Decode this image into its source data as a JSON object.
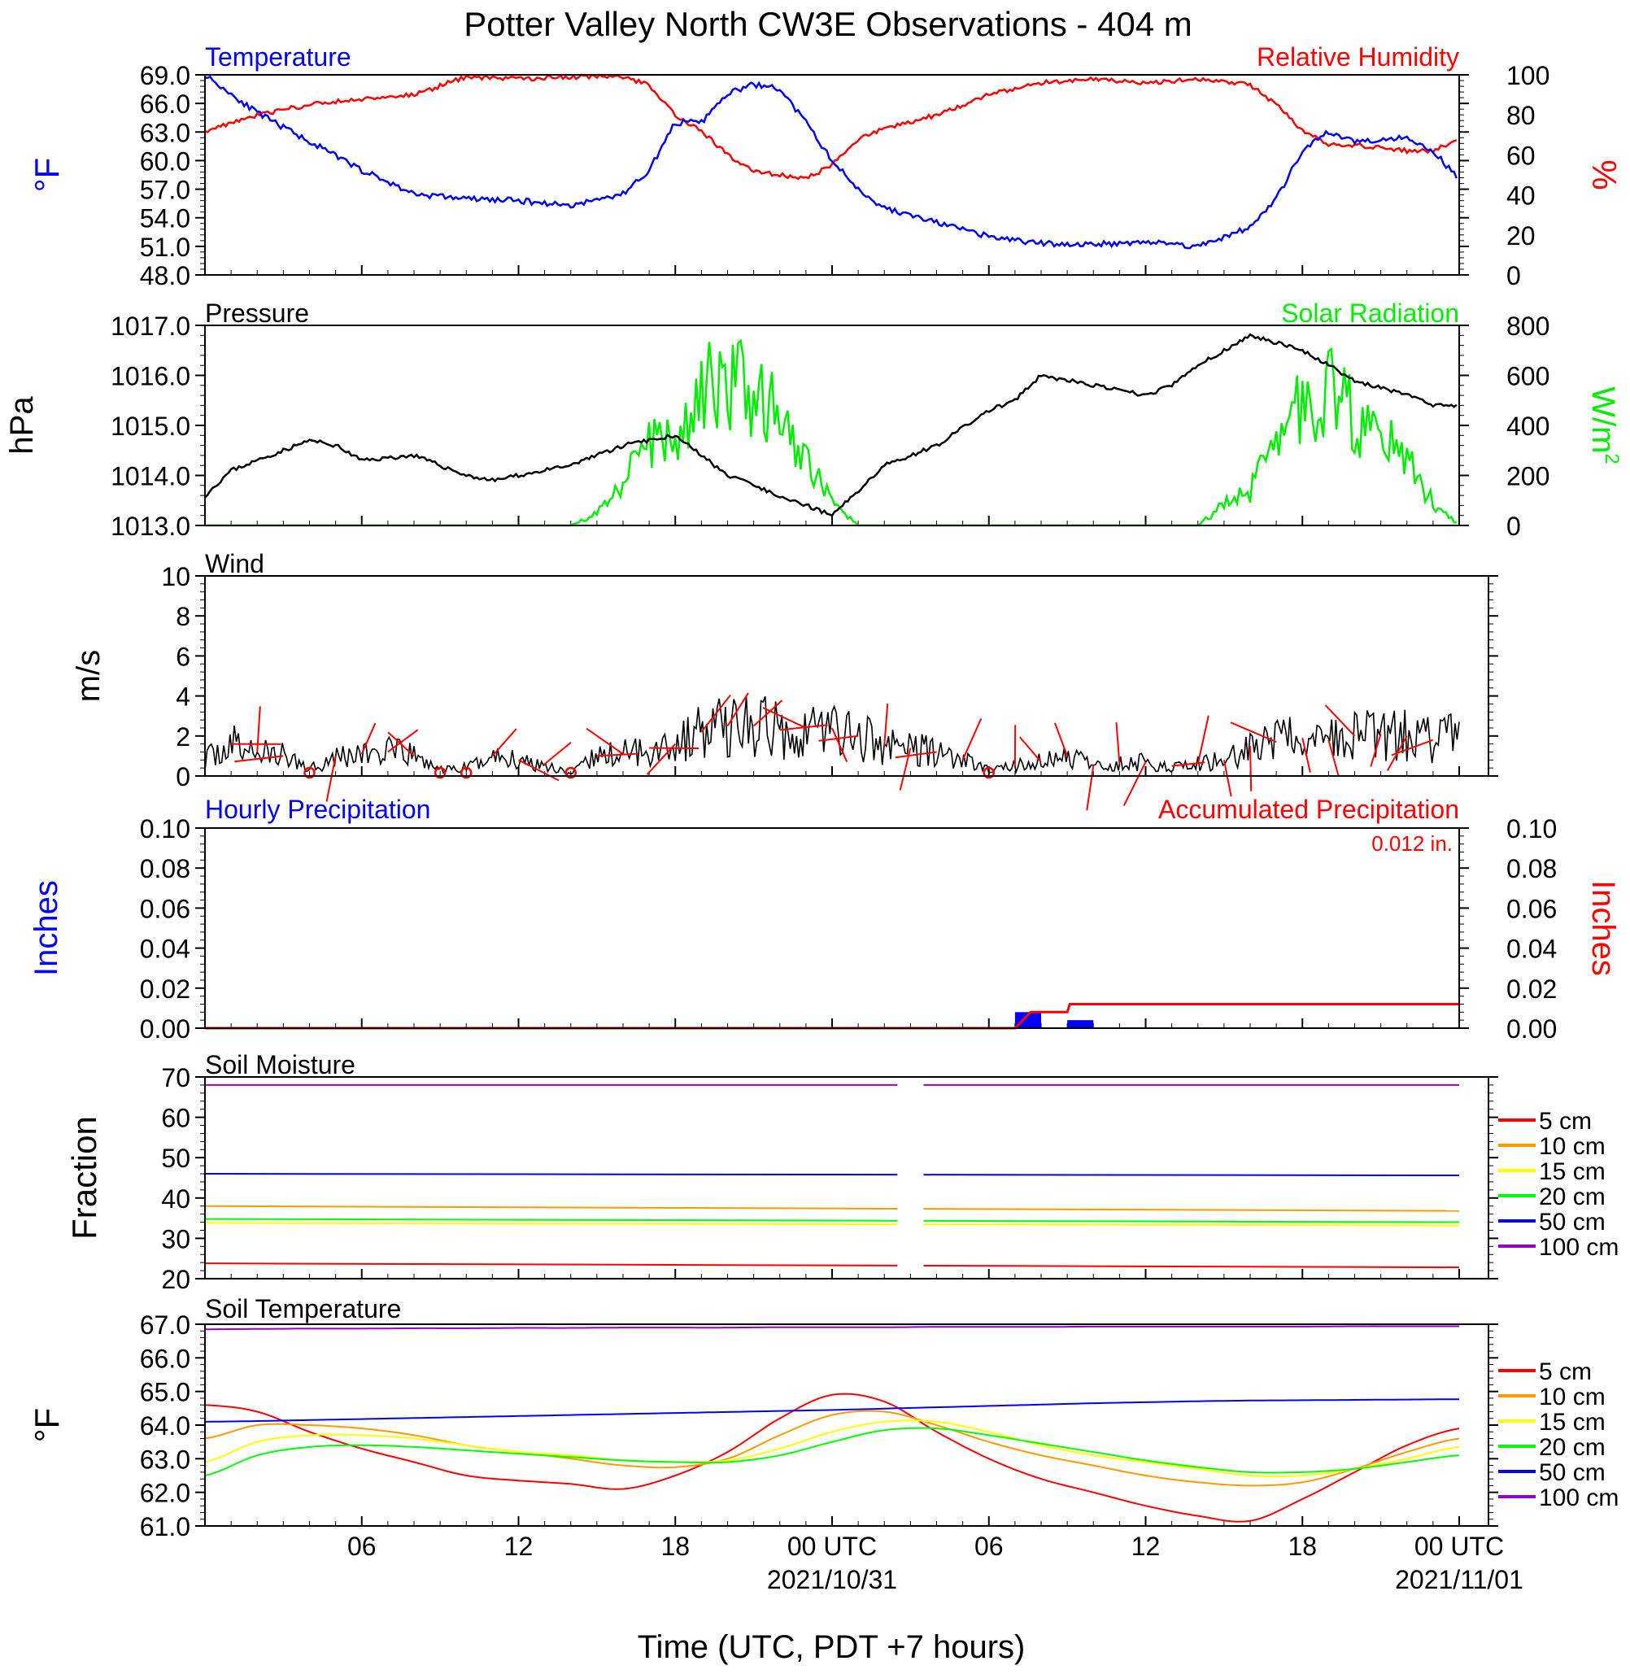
{
  "figure_title": "Potter Valley North CW3E Observations - 404 m",
  "x_axis": {
    "label": "Time (UTC, PDT +7 hours)",
    "ticks": [
      "06",
      "12",
      "18",
      "00 UTC",
      "06",
      "12",
      "18",
      "00 UTC"
    ],
    "dates": [
      "2021/10/31",
      "2021/11/01"
    ]
  },
  "colors": {
    "temperature": "#0000ff",
    "humidity": "#ff0000",
    "pressure": "#000000",
    "solar": "#00ee00",
    "wind": "#000000",
    "wind_barb": "#ff0000",
    "hourly_precip": "#0000ff",
    "accum_precip": "#ff0000"
  },
  "chart_data": [
    {
      "type": "line",
      "title_left": "Temperature",
      "title_right": "Relative Humidity",
      "ylabel_left": "°F",
      "ylabel_right": "%",
      "ylim_left": [
        48,
        69
      ],
      "ylim_right": [
        0,
        100
      ],
      "yticks_left": [
        "69.0",
        "66.0",
        "63.0",
        "60.0",
        "57.0",
        "54.0",
        "51.0",
        "48.0"
      ],
      "yticks_right": [
        "100",
        "80",
        "60",
        "40",
        "20",
        "0"
      ],
      "x_hours": [
        0,
        2,
        4,
        6,
        8,
        10,
        12,
        14,
        16,
        17,
        18,
        19,
        20,
        21,
        22,
        23,
        24,
        25,
        26,
        28,
        30,
        32,
        34,
        36,
        38,
        40,
        41,
        42,
        43,
        44,
        46,
        47,
        48
      ],
      "series": [
        {
          "name": "Temperature",
          "axis": "left",
          "values": [
            69,
            65,
            62,
            59,
            56.5,
            56,
            55.8,
            55.3,
            56.5,
            59,
            64,
            64,
            67,
            68,
            67.5,
            64,
            60,
            57,
            55,
            53.5,
            52,
            51.3,
            51.2,
            51.5,
            51,
            53,
            56,
            61,
            63,
            62,
            62.5,
            61,
            58
          ]
        },
        {
          "name": "Relative Humidity",
          "axis": "right",
          "values": [
            72,
            80,
            85,
            88,
            90,
            99,
            98,
            99,
            99,
            95,
            80,
            72,
            60,
            52,
            50,
            48,
            55,
            68,
            73,
            80,
            90,
            96,
            98,
            96,
            98,
            95,
            85,
            72,
            65,
            65,
            62,
            62,
            68
          ]
        }
      ]
    },
    {
      "type": "line",
      "title_left": "Pressure",
      "title_right": "Solar Radiation",
      "ylabel_left": "hPa",
      "ylabel_right": "W/m",
      "ylabel_right_sup": "2",
      "ylim_left": [
        1013,
        1017
      ],
      "ylim_right": [
        0,
        800
      ],
      "yticks_left": [
        "1017.0",
        "1016.0",
        "1015.0",
        "1014.0",
        "1013.0"
      ],
      "yticks_right": [
        "800",
        "600",
        "400",
        "200",
        "0"
      ],
      "series": [
        {
          "name": "Pressure",
          "axis": "left",
          "x_hours": [
            0,
            1,
            2,
            4,
            5,
            6,
            8,
            10,
            11,
            12,
            14,
            16,
            18,
            20,
            22,
            24,
            26,
            28,
            30,
            31,
            32,
            34,
            36,
            37,
            38,
            39,
            40,
            42,
            44,
            46,
            47,
            48
          ],
          "values": [
            1013.6,
            1014.1,
            1014.3,
            1014.7,
            1014.6,
            1014.3,
            1014.4,
            1014,
            1013.9,
            1014.0,
            1014.2,
            1014.6,
            1014.8,
            1014.0,
            1013.6,
            1013.2,
            1014.2,
            1014.6,
            1015.3,
            1015.5,
            1016.0,
            1015.8,
            1015.6,
            1015.8,
            1016.2,
            1016.5,
            1016.8,
            1016.5,
            1015.9,
            1015.6,
            1015.4,
            1015.4
          ]
        },
        {
          "name": "Solar Radiation",
          "axis": "right",
          "x_hours": [
            0,
            14,
            15,
            16,
            17,
            18,
            19,
            19.5,
            20,
            21,
            22,
            23,
            24,
            25,
            26,
            38,
            39,
            40,
            40.5,
            41,
            42,
            43,
            44,
            45,
            46,
            47,
            48
          ],
          "values": [
            0,
            0,
            50,
            200,
            350,
            420,
            600,
            700,
            650,
            620,
            500,
            300,
            100,
            0,
            0,
            0,
            100,
            150,
            280,
            450,
            520,
            600,
            500,
            400,
            300,
            100,
            0
          ]
        }
      ]
    },
    {
      "type": "line",
      "title_left": "Wind",
      "ylabel_left": "m/s",
      "ylim_left": [
        0,
        10
      ],
      "yticks_left": [
        "10",
        "8",
        "6",
        "4",
        "2",
        "0"
      ],
      "x_hours": [
        0,
        1,
        2,
        3,
        4,
        5,
        6,
        7,
        8,
        9,
        10,
        11,
        12,
        13,
        14,
        15,
        16,
        17,
        18,
        19,
        20,
        21,
        22,
        23,
        24,
        25,
        26,
        27,
        28,
        29,
        30,
        31,
        32,
        33,
        34,
        35,
        36,
        37,
        38,
        39,
        40,
        41,
        42,
        43,
        44,
        45,
        46,
        47,
        48
      ],
      "series": [
        {
          "name": "Wind speed",
          "values": [
            0.8,
            1.6,
            1.2,
            1.0,
            0.4,
            1.0,
            1.1,
            1.2,
            1.0,
            0.3,
            0.4,
            1.0,
            0.8,
            0.6,
            0.1,
            1.0,
            1.1,
            1.4,
            1.6,
            2.2,
            2.5,
            2.5,
            2.3,
            2.4,
            2.4,
            2.0,
            1.5,
            1.4,
            1.2,
            0.8,
            0.3,
            0.5,
            0.7,
            1.0,
            0.5,
            0.6,
            0.7,
            0.5,
            0.6,
            0.8,
            1.5,
            1.7,
            1.9,
            1.8,
            2.0,
            2.1,
            2.0,
            1.8,
            2.2
          ]
        }
      ]
    },
    {
      "type": "bar",
      "title_left": "Hourly Precipitation",
      "title_right": "Accumulated Precipitation",
      "annotation": "0.012 in.",
      "ylabel_left": "Inches",
      "ylabel_right": "Inches",
      "ylim_left": [
        0,
        0.1
      ],
      "ylim_right": [
        0,
        0.1
      ],
      "yticks_left": [
        "0.10",
        "0.08",
        "0.06",
        "0.04",
        "0.02",
        "0.00"
      ],
      "yticks_right": [
        "0.10",
        "0.08",
        "0.06",
        "0.04",
        "0.02",
        "0.00"
      ],
      "series": [
        {
          "name": "Hourly Precipitation",
          "x_hours": [
            31,
            33
          ],
          "values": [
            0.008,
            0.004
          ]
        },
        {
          "name": "Accumulated Precipitation",
          "x_hours": [
            0,
            31,
            31.6,
            33,
            33.1,
            48
          ],
          "values": [
            0,
            0,
            0.008,
            0.008,
            0.012,
            0.012
          ]
        }
      ]
    },
    {
      "type": "line",
      "title_left": "Soil Moisture",
      "ylabel_left": "Fraction",
      "ylim_left": [
        20,
        70
      ],
      "yticks_left": [
        "70",
        "60",
        "50",
        "40",
        "30",
        "20"
      ],
      "gap_hours": [
        26.5,
        27.5
      ],
      "series": [
        {
          "name": "5 cm",
          "color": "#ff0000",
          "values_start_end": [
            23.8,
            22.8
          ]
        },
        {
          "name": "10 cm",
          "color": "#ff9900",
          "values_start_end": [
            38.0,
            36.8
          ]
        },
        {
          "name": "15 cm",
          "color": "#ffff00",
          "values_start_end": [
            33.8,
            33.2
          ]
        },
        {
          "name": "20 cm",
          "color": "#00ff00",
          "values_start_end": [
            34.8,
            34.0
          ]
        },
        {
          "name": "50 cm",
          "color": "#0000ff",
          "values_start_end": [
            46.0,
            45.6
          ]
        },
        {
          "name": "100 cm",
          "color": "#9900cc",
          "values_start_end": [
            68.0,
            68.0
          ]
        }
      ]
    },
    {
      "type": "line",
      "title_left": "Soil Temperature",
      "ylabel_left": "°F",
      "ylim_left": [
        61,
        67
      ],
      "yticks_left": [
        "67.0",
        "66.0",
        "65.0",
        "64.0",
        "63.0",
        "62.0",
        "61.0"
      ],
      "x_hours": [
        0,
        2,
        4,
        6,
        8,
        10,
        12,
        14,
        16,
        18,
        20,
        22,
        24,
        26,
        28,
        30,
        32,
        34,
        36,
        38,
        40,
        42,
        44,
        46,
        48
      ],
      "series": [
        {
          "name": "5 cm",
          "color": "#ff0000",
          "values": [
            64.6,
            64.4,
            63.8,
            63.3,
            62.9,
            62.5,
            62.35,
            62.25,
            62.1,
            62.5,
            63.2,
            64.2,
            64.9,
            64.7,
            63.8,
            63.0,
            62.4,
            62.0,
            61.6,
            61.3,
            61.15,
            61.8,
            62.6,
            63.4,
            63.9
          ]
        },
        {
          "name": "10 cm",
          "color": "#ff9900",
          "values": [
            63.6,
            64.0,
            64.0,
            63.9,
            63.7,
            63.4,
            63.2,
            63.0,
            62.8,
            62.75,
            63.0,
            63.7,
            64.3,
            64.4,
            64.0,
            63.5,
            63.1,
            62.8,
            62.5,
            62.3,
            62.2,
            62.3,
            62.7,
            63.2,
            63.6
          ]
        },
        {
          "name": "15 cm",
          "color": "#ffff00",
          "values": [
            62.9,
            63.5,
            63.7,
            63.7,
            63.6,
            63.4,
            63.2,
            63.1,
            62.95,
            62.9,
            62.95,
            63.3,
            63.8,
            64.1,
            64.1,
            63.8,
            63.4,
            63.1,
            62.9,
            62.7,
            62.5,
            62.5,
            62.7,
            63.0,
            63.35
          ]
        },
        {
          "name": "20 cm",
          "color": "#00ff00",
          "values": [
            62.5,
            63.1,
            63.35,
            63.4,
            63.35,
            63.25,
            63.15,
            63.05,
            62.95,
            62.9,
            62.9,
            63.1,
            63.5,
            63.85,
            63.9,
            63.7,
            63.45,
            63.2,
            62.95,
            62.75,
            62.6,
            62.6,
            62.7,
            62.9,
            63.1
          ]
        },
        {
          "name": "50 cm",
          "color": "#0000ff",
          "values": [
            64.1,
            64.12,
            64.15,
            64.18,
            64.21,
            64.24,
            64.27,
            64.3,
            64.33,
            64.36,
            64.39,
            64.42,
            64.45,
            64.49,
            64.53,
            64.57,
            64.61,
            64.65,
            64.68,
            64.71,
            64.73,
            64.74,
            64.75,
            64.76,
            64.77
          ]
        },
        {
          "name": "100 cm",
          "color": "#9900cc",
          "values": [
            66.85,
            66.86,
            66.87,
            66.87,
            66.88,
            66.88,
            66.89,
            66.89,
            66.9,
            66.9,
            66.9,
            66.91,
            66.91,
            66.91,
            66.92,
            66.92,
            66.92,
            66.93,
            66.93,
            66.93,
            66.93,
            66.93,
            66.94,
            66.94,
            66.94
          ]
        }
      ]
    }
  ],
  "legend_soil": [
    "5 cm",
    "10 cm",
    "15 cm",
    "20 cm",
    "50 cm",
    "100 cm"
  ]
}
